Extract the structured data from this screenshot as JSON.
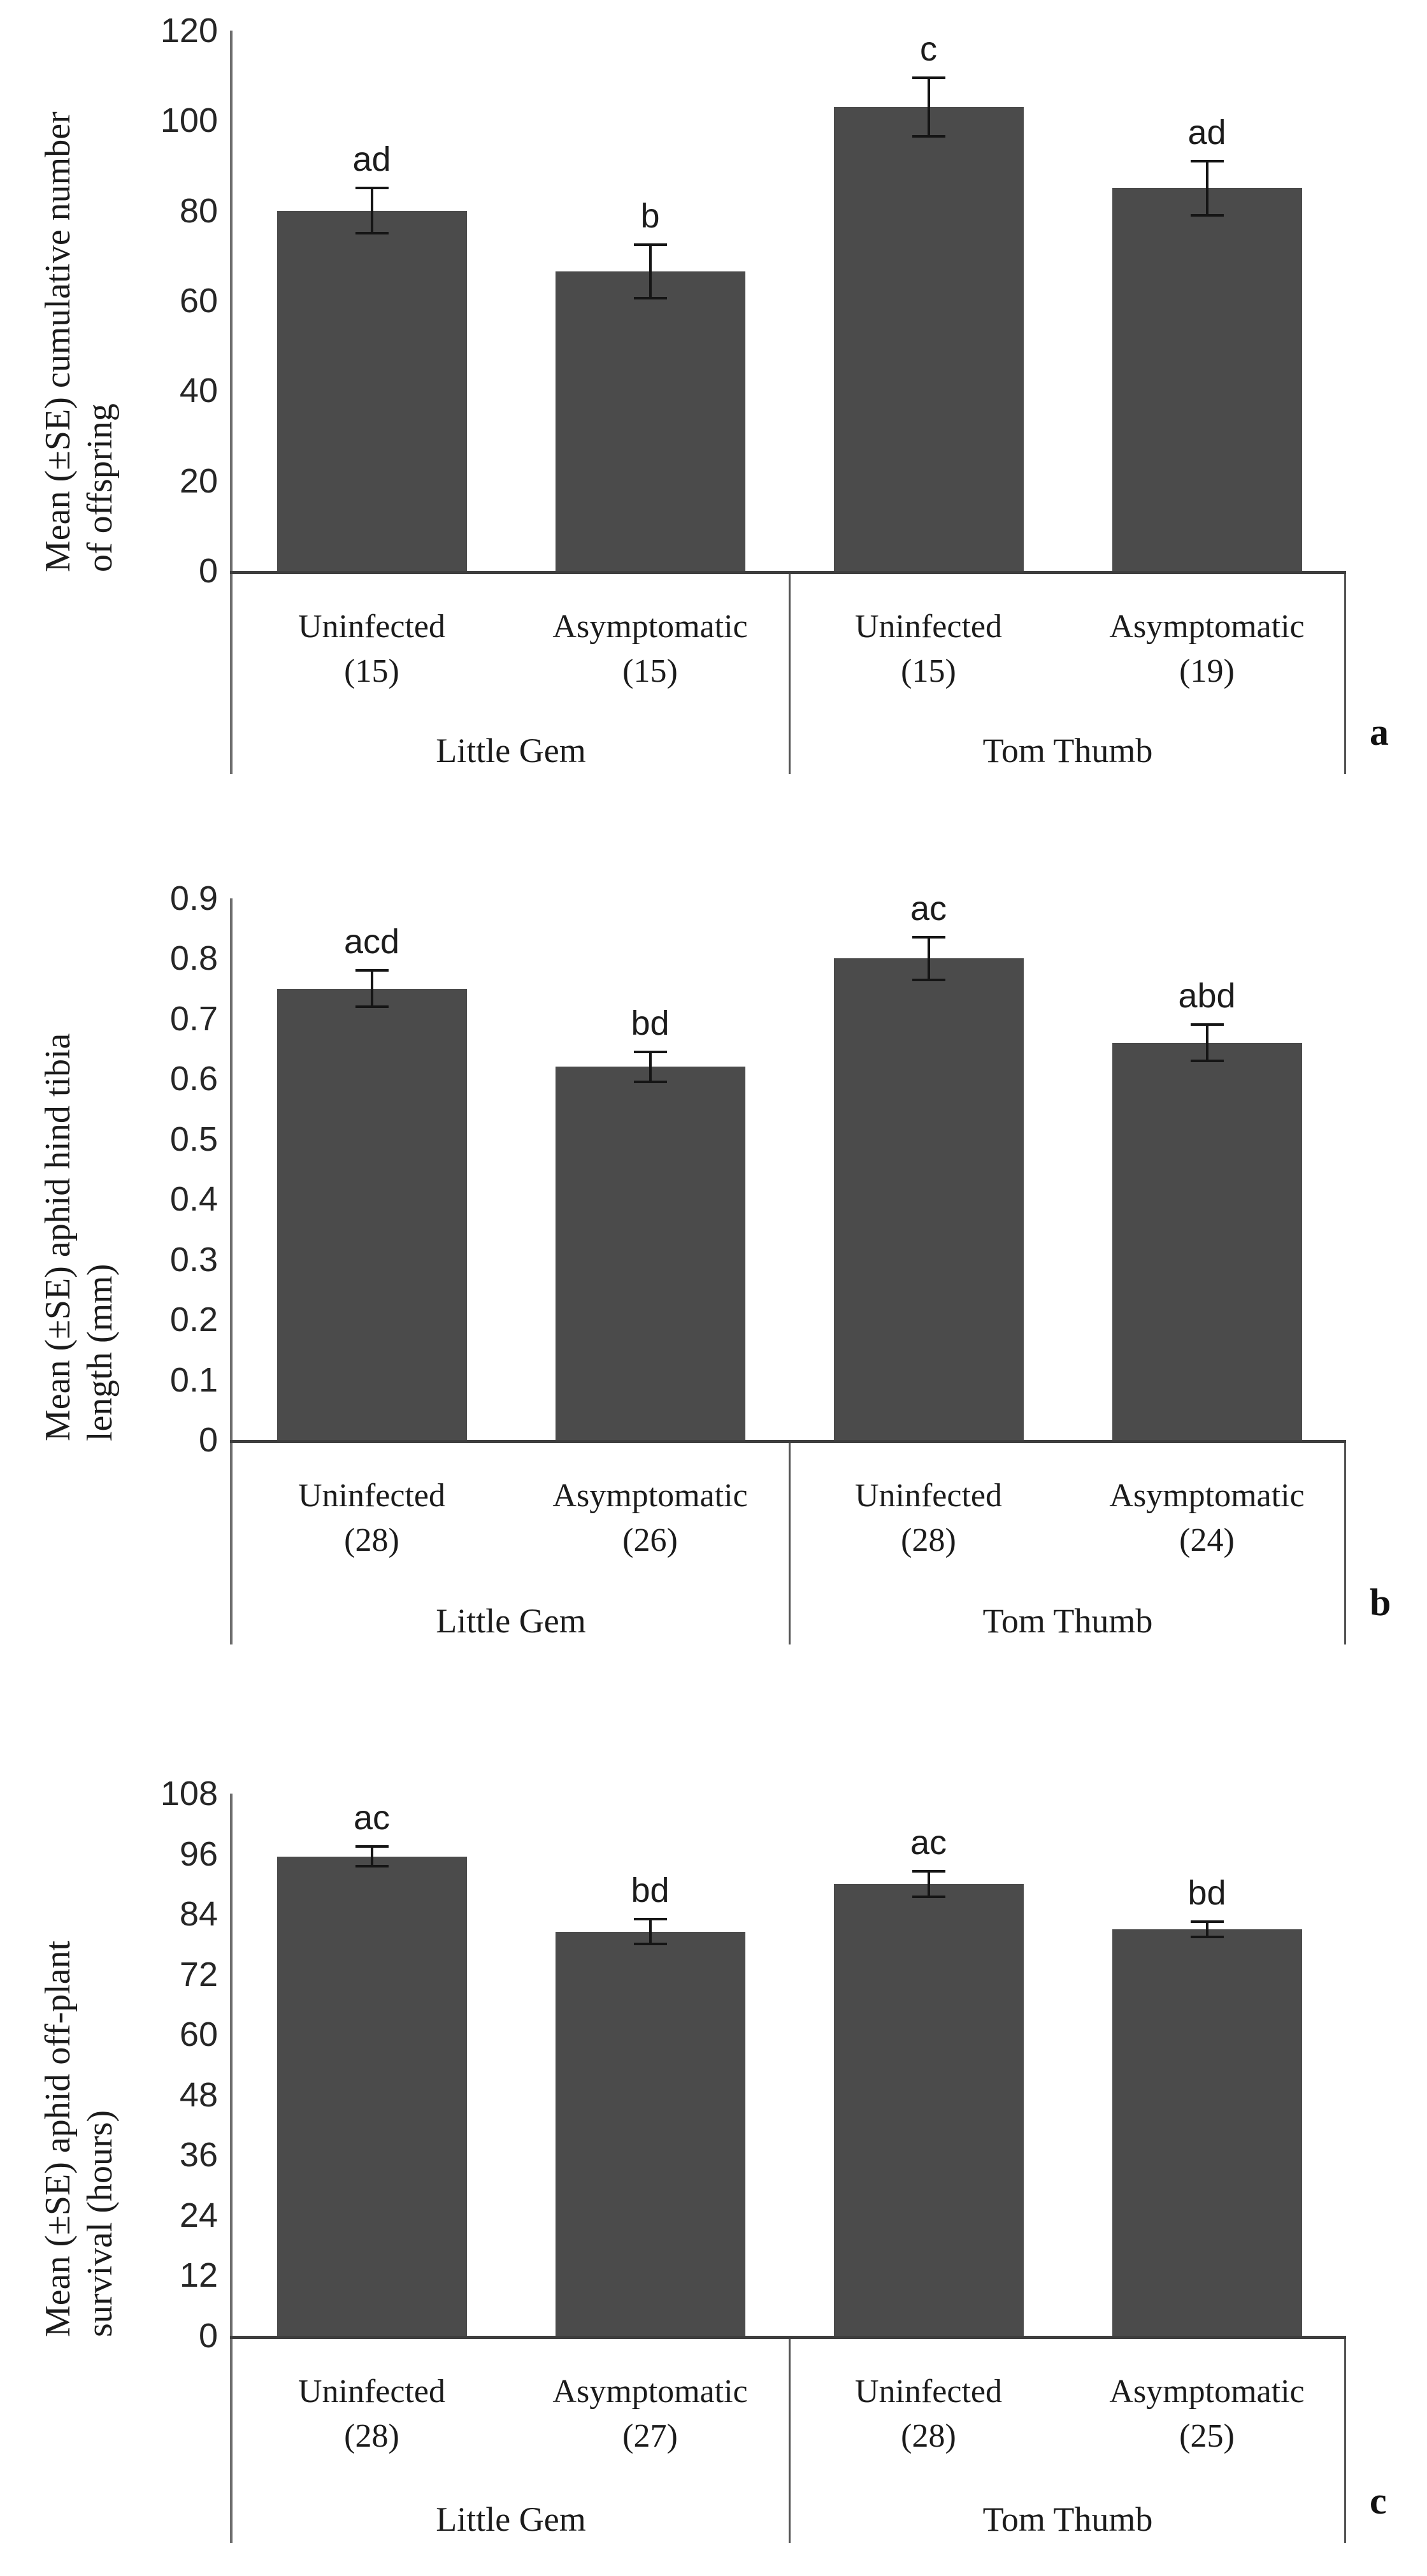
{
  "page": {
    "background": "#ffffff"
  },
  "chart_data": [
    {
      "type": "bar",
      "panel_label": "a",
      "ylabel": "Mean (±SE) cumulative number of offspring",
      "ylabel_lines": [
        "Mean (±SE) cumulative number",
        "of offspring"
      ],
      "ylim": [
        0,
        120
      ],
      "yticks": [
        "0",
        "20",
        "40",
        "60",
        "80",
        "100",
        "120"
      ],
      "grid": false,
      "legend": "none",
      "groups": [
        "Little Gem",
        "Tom Thumb"
      ],
      "categories": [
        "Uninfected",
        "Asymptomatic",
        "Uninfected",
        "Asymptomatic"
      ],
      "sample_sizes": [
        "(15)",
        "(15)",
        "(15)",
        "(19)"
      ],
      "values": [
        80,
        66.5,
        103,
        85
      ],
      "errors": [
        5,
        6,
        6.5,
        6
      ],
      "sig_letters": [
        "ad",
        "b",
        "c",
        "ad"
      ]
    },
    {
      "type": "bar",
      "panel_label": "b",
      "ylabel": "Mean (±SE) aphid hind tibia length (mm)",
      "ylabel_lines": [
        "Mean (±SE) aphid hind tibia",
        "length (mm)"
      ],
      "ylim": [
        0,
        0.9
      ],
      "yticks": [
        "0",
        "0.1",
        "0.2",
        "0.3",
        "0.4",
        "0.5",
        "0.6",
        "0.7",
        "0.8",
        "0.9"
      ],
      "grid": false,
      "legend": "none",
      "groups": [
        "Little Gem",
        "Tom Thumb"
      ],
      "categories": [
        "Uninfected",
        "Asymptomatic",
        "Uninfected",
        "Asymptomatic"
      ],
      "sample_sizes": [
        "(28)",
        "(26)",
        "(28)",
        "(24)"
      ],
      "values": [
        0.75,
        0.62,
        0.8,
        0.66
      ],
      "errors": [
        0.03,
        0.025,
        0.035,
        0.03
      ],
      "sig_letters": [
        "acd",
        "bd",
        "ac",
        "abd"
      ]
    },
    {
      "type": "bar",
      "panel_label": "c",
      "ylabel": "Mean (±SE) aphid off-plant survival (hours)",
      "ylabel_lines": [
        "Mean (±SE) aphid off-plant",
        "survival (hours)"
      ],
      "ylim": [
        0,
        108
      ],
      "yticks": [
        "0",
        "12",
        "24",
        "36",
        "48",
        "60",
        "72",
        "84",
        "96",
        "108"
      ],
      "grid": false,
      "legend": "none",
      "groups": [
        "Little Gem",
        "Tom Thumb"
      ],
      "categories": [
        "Uninfected",
        "Asymptomatic",
        "Uninfected",
        "Asymptomatic"
      ],
      "sample_sizes": [
        "(28)",
        "(27)",
        "(28)",
        "(25)"
      ],
      "values": [
        95.5,
        80.5,
        90,
        81
      ],
      "errors": [
        2,
        2.5,
        2.5,
        1.5
      ],
      "sig_letters": [
        "ac",
        "bd",
        "ac",
        "bd"
      ]
    }
  ],
  "colors": {
    "bar_fill": "#4b4b4b",
    "axis_line": "#6f6f6f",
    "baseline": "#3e3e3e",
    "error_bar": "#151515",
    "text": "#1b1b1b"
  }
}
